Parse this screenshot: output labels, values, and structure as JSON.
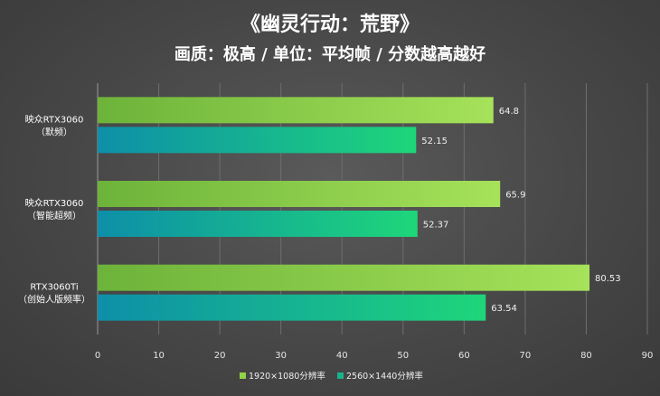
{
  "chart_data": {
    "type": "bar",
    "orientation": "horizontal",
    "title": "《幽灵行动：荒野》",
    "subtitle": "画质：极高 / 单位：平均帧 / 分数越高越好",
    "categories": [
      [
        "映众RTX3060",
        "（默频）"
      ],
      [
        "映众RTX3060",
        "（智能超频）"
      ],
      [
        "RTX3060Ti",
        "（创始人版频率）"
      ]
    ],
    "series": [
      {
        "name": "1920×1080分辨率",
        "values": [
          64.8,
          65.9,
          80.53
        ],
        "color": "#8fd44a"
      },
      {
        "name": "2560×1440分辨率",
        "values": [
          52.15,
          52.37,
          63.54
        ],
        "color": "#17b38f"
      }
    ],
    "data_labels": [
      [
        "64.8",
        "52.15"
      ],
      [
        "65.9",
        "52.37"
      ],
      [
        "80.53",
        "63.54"
      ]
    ],
    "xlim": [
      0,
      90
    ],
    "xticks": [
      "0",
      "10",
      "20",
      "30",
      "40",
      "50",
      "60",
      "70",
      "80",
      "90"
    ],
    "grid": true,
    "legend_position": "bottom-center"
  }
}
